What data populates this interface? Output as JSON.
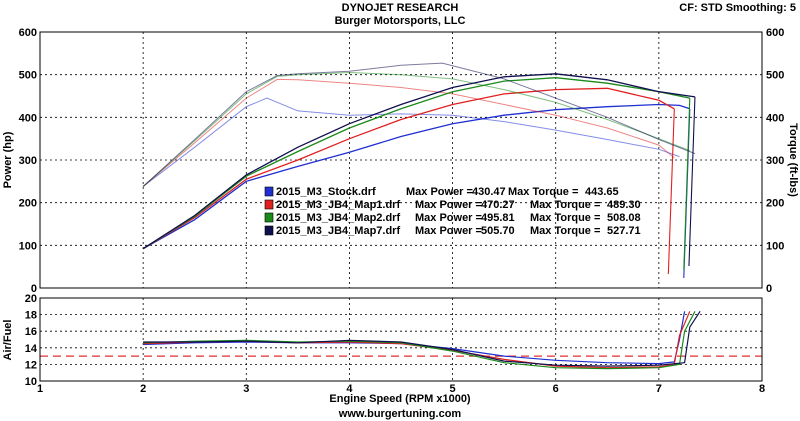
{
  "header": {
    "title": "DYNOJET RESEARCH",
    "subtitle": "Burger Motorsports, LLC",
    "settings": "CF: STD  Smoothing: 5",
    "footer": "www.burgertuning.com"
  },
  "colors": {
    "stock": "#1f2fd0",
    "map1": "#e02020",
    "map2": "#1a8a1a",
    "map7": "#101050",
    "target_line": "#e03030",
    "grid": "#000000"
  },
  "chart_data": [
    {
      "type": "line",
      "title": "",
      "xlabel": "Engine Speed (RPM x1000)",
      "ylabel": "Power (hp)",
      "y2label": "Torque (ft-lbs)",
      "xlim": [
        1,
        8
      ],
      "ylim": [
        0,
        600
      ],
      "y2lim": [
        0,
        600
      ],
      "xticks": [
        "1",
        "2",
        "3",
        "4",
        "5",
        "6",
        "7",
        "8"
      ],
      "yticks": [
        "0",
        "100",
        "200",
        "300",
        "400",
        "500",
        "600"
      ],
      "y2ticks": [
        "0",
        "100",
        "200",
        "300",
        "400",
        "500",
        "600"
      ],
      "grid": true,
      "legend_position": "center",
      "legend": [
        {
          "file": "2015_M3_Stock.drf",
          "power_label": "Max Power = ",
          "power": "430.47",
          "torque_label": "Max Torque = ",
          "torque": "443.65"
        },
        {
          "file": "2015_M3_JB4_Map1.drf",
          "power_label": "Max Power = ",
          "power": "470.27",
          "torque_label": "Max Torque = ",
          "torque": "489.30"
        },
        {
          "file": "2015_M3_JB4_Map2.drf",
          "power_label": "Max Power = ",
          "power": "495.81",
          "torque_label": "Max Torque = ",
          "torque": "508.08"
        },
        {
          "file": "2015_M3_JB4_Map7.drf",
          "power_label": "Max Power = ",
          "power": "505.70",
          "torque_label": "Max Torque = ",
          "torque": "527.71"
        }
      ],
      "series": [
        {
          "name": "2015_M3_Stock.drf",
          "power": [
            [
              2.0,
              92
            ],
            [
              2.5,
              160
            ],
            [
              3.0,
              250
            ],
            [
              3.5,
              285
            ],
            [
              4.0,
              318
            ],
            [
              4.5,
              355
            ],
            [
              5.0,
              385
            ],
            [
              5.5,
              405
            ],
            [
              6.0,
              418
            ],
            [
              6.5,
              425
            ],
            [
              7.0,
              430
            ],
            [
              7.2,
              428
            ],
            [
              7.3,
              420
            ]
          ],
          "torque": [
            [
              2.0,
              238
            ],
            [
              2.5,
              330
            ],
            [
              3.0,
              425
            ],
            [
              3.2,
              445
            ],
            [
              3.5,
              415
            ],
            [
              4.0,
              405
            ],
            [
              4.5,
              408
            ],
            [
              5.0,
              405
            ],
            [
              5.5,
              390
            ],
            [
              6.0,
              370
            ],
            [
              6.5,
              348
            ],
            [
              7.0,
              325
            ],
            [
              7.2,
              308
            ]
          ]
        },
        {
          "name": "2015_M3_JB4_Map1.drf",
          "power": [
            [
              2.0,
              92
            ],
            [
              2.5,
              165
            ],
            [
              3.0,
              255
            ],
            [
              3.5,
              300
            ],
            [
              4.0,
              350
            ],
            [
              4.5,
              395
            ],
            [
              5.0,
              430
            ],
            [
              5.5,
              455
            ],
            [
              6.0,
              465
            ],
            [
              6.5,
              468
            ],
            [
              7.0,
              440
            ],
            [
              7.15,
              420
            ]
          ],
          "torque": [
            [
              2.0,
              238
            ],
            [
              2.5,
              340
            ],
            [
              3.0,
              445
            ],
            [
              3.3,
              489
            ],
            [
              3.5,
              488
            ],
            [
              4.0,
              480
            ],
            [
              4.5,
              470
            ],
            [
              5.0,
              455
            ],
            [
              5.5,
              430
            ],
            [
              6.0,
              405
            ],
            [
              6.5,
              375
            ],
            [
              7.0,
              335
            ],
            [
              7.15,
              305
            ]
          ]
        },
        {
          "name": "2015_M3_JB4_Map2.drf",
          "power": [
            [
              2.0,
              92
            ],
            [
              2.5,
              168
            ],
            [
              3.0,
              262
            ],
            [
              3.5,
              320
            ],
            [
              4.0,
              375
            ],
            [
              4.5,
              420
            ],
            [
              5.0,
              460
            ],
            [
              5.5,
              485
            ],
            [
              6.0,
              493
            ],
            [
              6.5,
              480
            ],
            [
              7.0,
              460
            ],
            [
              7.3,
              445
            ]
          ],
          "torque": [
            [
              2.0,
              238
            ],
            [
              2.5,
              345
            ],
            [
              3.0,
              455
            ],
            [
              3.3,
              496
            ],
            [
              3.5,
              500
            ],
            [
              4.0,
              505
            ],
            [
              4.5,
              500
            ],
            [
              5.0,
              490
            ],
            [
              5.5,
              465
            ],
            [
              6.0,
              435
            ],
            [
              6.5,
              395
            ],
            [
              7.0,
              350
            ],
            [
              7.3,
              322
            ]
          ]
        },
        {
          "name": "2015_M3_JB4_Map7.drf",
          "power": [
            [
              2.0,
              92
            ],
            [
              2.5,
              170
            ],
            [
              3.0,
              265
            ],
            [
              3.5,
              330
            ],
            [
              4.0,
              385
            ],
            [
              4.5,
              430
            ],
            [
              5.0,
              470
            ],
            [
              5.5,
              495
            ],
            [
              6.0,
              502
            ],
            [
              6.5,
              488
            ],
            [
              7.0,
              460
            ],
            [
              7.35,
              448
            ]
          ],
          "torque": [
            [
              2.0,
              238
            ],
            [
              2.5,
              348
            ],
            [
              3.0,
              460
            ],
            [
              3.3,
              498
            ],
            [
              3.5,
              502
            ],
            [
              4.0,
              508
            ],
            [
              4.5,
              522
            ],
            [
              4.9,
              527
            ],
            [
              5.5,
              490
            ],
            [
              6.0,
              445
            ],
            [
              6.5,
              400
            ],
            [
              7.0,
              348
            ],
            [
              7.35,
              315
            ]
          ]
        }
      ]
    },
    {
      "type": "line",
      "title": "",
      "xlabel": "Engine Speed (RPM x1000)",
      "ylabel": "Air/Fuel",
      "xlim": [
        1,
        8
      ],
      "ylim": [
        10,
        20
      ],
      "xticks": [
        "1",
        "2",
        "3",
        "4",
        "5",
        "6",
        "7",
        "8"
      ],
      "yticks": [
        "10",
        "12",
        "14",
        "16",
        "18",
        "20"
      ],
      "grid": true,
      "target_afr": 13.0,
      "series": [
        {
          "name": "2015_M3_Stock.drf",
          "values": [
            [
              2.0,
              14.4
            ],
            [
              2.5,
              14.6
            ],
            [
              3.0,
              14.7
            ],
            [
              3.5,
              14.6
            ],
            [
              4.0,
              14.6
            ],
            [
              4.5,
              14.5
            ],
            [
              5.0,
              13.9
            ],
            [
              5.5,
              13.0
            ],
            [
              6.0,
              12.5
            ],
            [
              6.5,
              12.2
            ],
            [
              7.0,
              12.1
            ],
            [
              7.15,
              12.3
            ],
            [
              7.2,
              15.0
            ],
            [
              7.25,
              18.4
            ]
          ]
        },
        {
          "name": "2015_M3_JB4_Map1.drf",
          "values": [
            [
              2.0,
              14.5
            ],
            [
              2.5,
              14.7
            ],
            [
              3.0,
              14.8
            ],
            [
              3.5,
              14.6
            ],
            [
              4.0,
              14.7
            ],
            [
              4.5,
              14.5
            ],
            [
              5.0,
              13.7
            ],
            [
              5.5,
              12.6
            ],
            [
              6.0,
              11.8
            ],
            [
              6.5,
              11.6
            ],
            [
              7.0,
              11.7
            ],
            [
              7.15,
              12.0
            ],
            [
              7.2,
              15.5
            ],
            [
              7.3,
              18.4
            ]
          ]
        },
        {
          "name": "2015_M3_JB4_Map2.drf",
          "values": [
            [
              2.0,
              14.6
            ],
            [
              2.5,
              14.8
            ],
            [
              3.0,
              14.9
            ],
            [
              3.5,
              14.7
            ],
            [
              4.0,
              14.8
            ],
            [
              4.5,
              14.6
            ],
            [
              5.0,
              13.6
            ],
            [
              5.5,
              12.2
            ],
            [
              6.0,
              11.6
            ],
            [
              6.5,
              11.5
            ],
            [
              7.0,
              11.6
            ],
            [
              7.2,
              12.0
            ],
            [
              7.25,
              16.0
            ],
            [
              7.35,
              18.4
            ]
          ]
        },
        {
          "name": "2015_M3_JB4_Map7.drf",
          "values": [
            [
              2.0,
              14.7
            ],
            [
              2.5,
              14.7
            ],
            [
              3.0,
              14.8
            ],
            [
              3.5,
              14.6
            ],
            [
              4.0,
              14.9
            ],
            [
              4.5,
              14.7
            ],
            [
              5.0,
              13.8
            ],
            [
              5.5,
              12.4
            ],
            [
              6.0,
              11.9
            ],
            [
              6.5,
              11.8
            ],
            [
              7.0,
              11.9
            ],
            [
              7.25,
              12.2
            ],
            [
              7.3,
              16.5
            ],
            [
              7.4,
              18.4
            ]
          ]
        }
      ]
    }
  ]
}
